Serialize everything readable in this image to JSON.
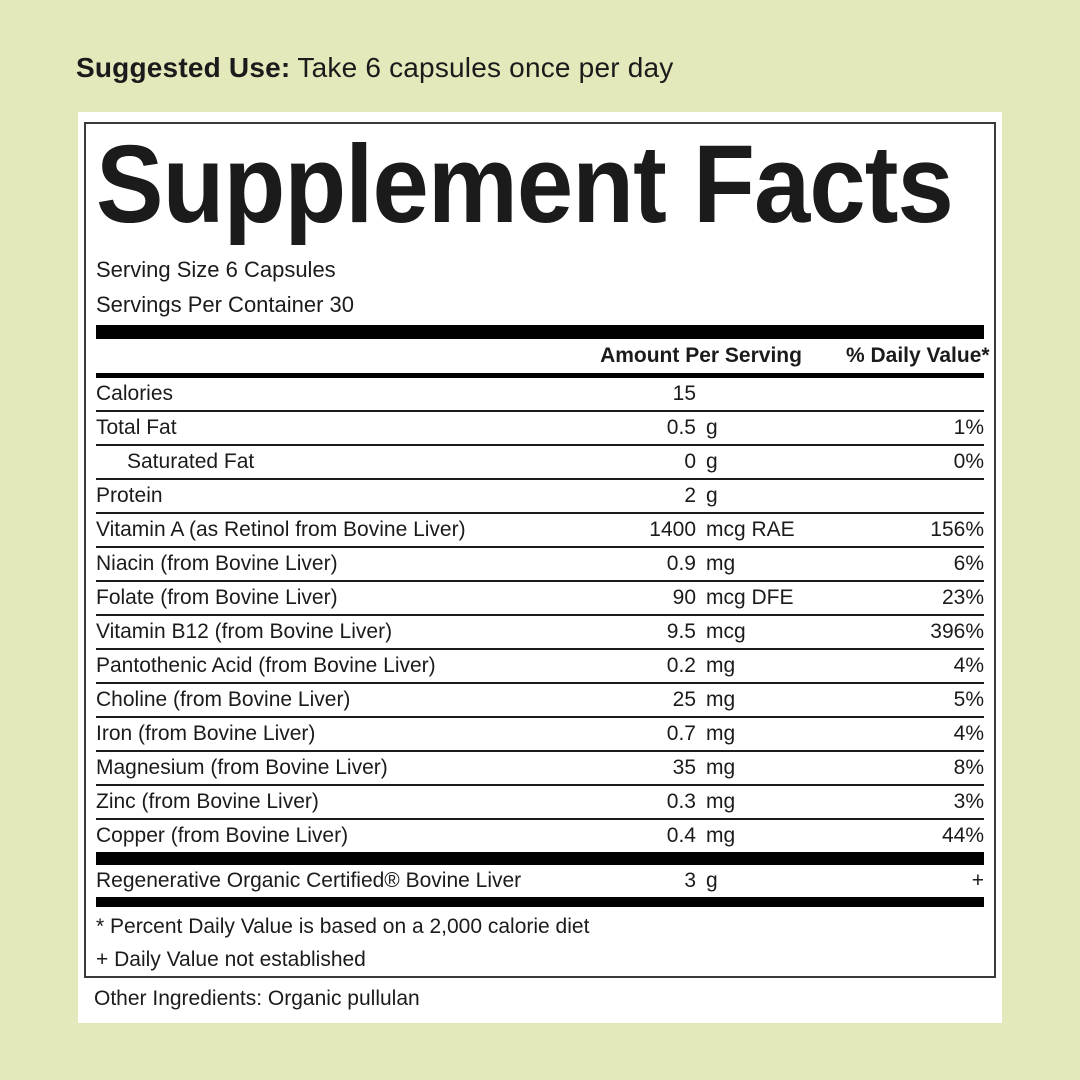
{
  "colors": {
    "background": "#e4e8ba",
    "card_background": "#ffffff",
    "panel_border": "#3b3b3b",
    "text": "#1b1b1b",
    "divider": "#000000"
  },
  "suggested_use": {
    "label": "Suggested Use:",
    "text": "Take 6 capsules once per day"
  },
  "panel": {
    "title": "Supplement Facts",
    "serving_size": "Serving Size 6 Capsules",
    "servings_per_container": "Servings Per Container 30",
    "columns": {
      "amount": "Amount Per Serving",
      "dv": "% Daily Value*"
    },
    "rows": [
      {
        "label": "Calories",
        "amount": "15",
        "unit": "",
        "dv": ""
      },
      {
        "label": "Total Fat",
        "amount": "0.5",
        "unit": "g",
        "dv": "1%"
      },
      {
        "label": "Saturated Fat",
        "amount": "0",
        "unit": "g",
        "dv": "0%",
        "indent": true
      },
      {
        "label": "Protein",
        "amount": "2",
        "unit": "g",
        "dv": ""
      },
      {
        "label": "Vitamin A (as Retinol from Bovine Liver)",
        "amount": "1400",
        "unit": "mcg RAE",
        "dv": "156%"
      },
      {
        "label": "Niacin (from Bovine Liver)",
        "amount": "0.9",
        "unit": "mg",
        "dv": "6%"
      },
      {
        "label": "Folate (from Bovine Liver)",
        "amount": "90",
        "unit": "mcg DFE",
        "dv": "23%"
      },
      {
        "label": "Vitamin B12 (from Bovine Liver)",
        "amount": "9.5",
        "unit": "mcg",
        "dv": "396%"
      },
      {
        "label": "Pantothenic Acid (from Bovine Liver)",
        "amount": "0.2",
        "unit": "mg",
        "dv": "4%"
      },
      {
        "label": "Choline (from Bovine Liver)",
        "amount": "25",
        "unit": "mg",
        "dv": "5%"
      },
      {
        "label": "Iron (from Bovine Liver)",
        "amount": "0.7",
        "unit": "mg",
        "dv": "4%"
      },
      {
        "label": "Magnesium (from Bovine Liver)",
        "amount": "35",
        "unit": "mg",
        "dv": "8%"
      },
      {
        "label": "Zinc (from Bovine Liver)",
        "amount": "0.3",
        "unit": "mg",
        "dv": "3%"
      },
      {
        "label": "Copper (from Bovine Liver)",
        "amount": "0.4",
        "unit": "mg",
        "dv": "44%"
      }
    ],
    "highlight_row": {
      "label": "Regenerative Organic Certified® Bovine Liver",
      "amount": "3",
      "unit": "g",
      "dv": "+"
    },
    "footnotes": [
      "* Percent Daily Value is based on a 2,000 calorie diet",
      "+ Daily Value not established"
    ],
    "other_ingredients": "Other Ingredients: Organic pullulan"
  }
}
